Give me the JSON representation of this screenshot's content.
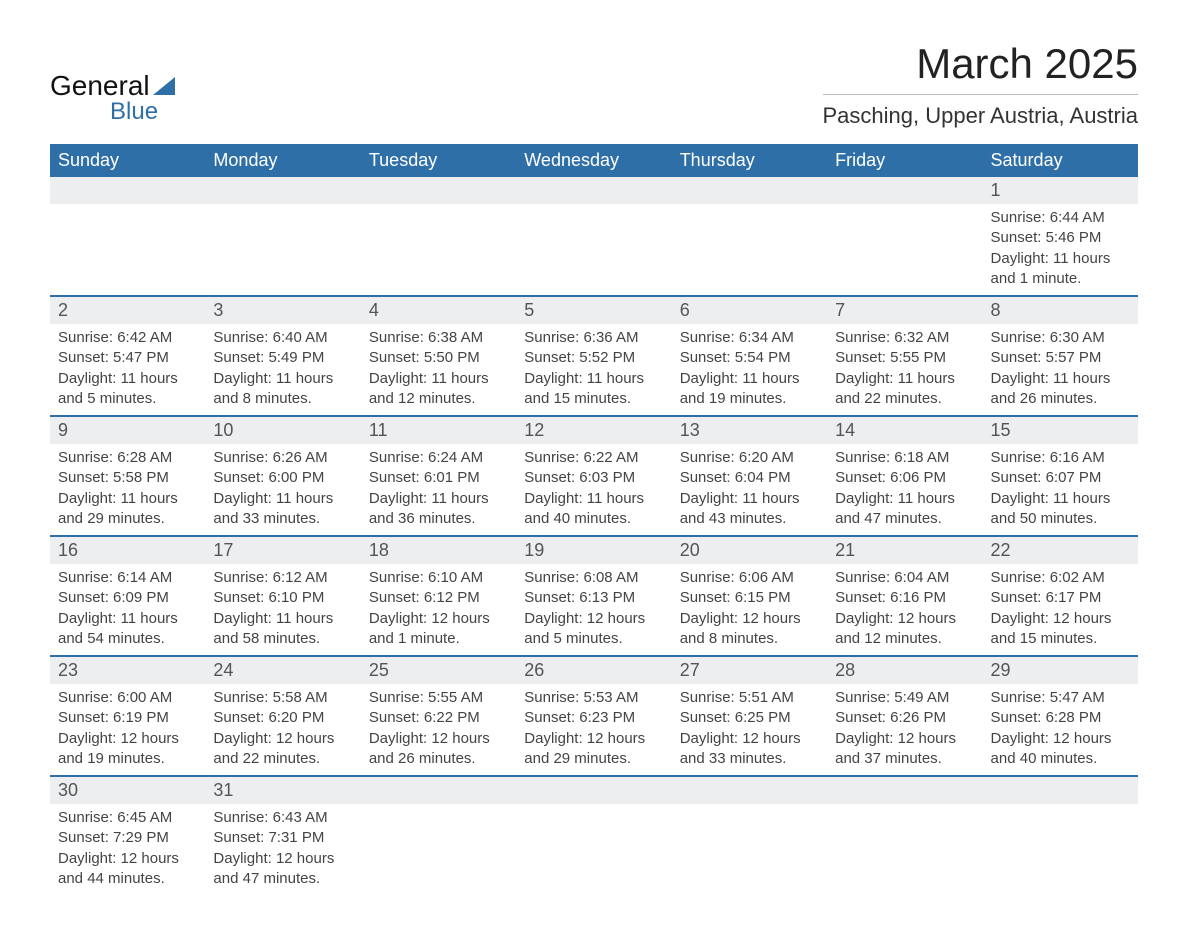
{
  "logo": {
    "word1": "General",
    "word2": "Blue"
  },
  "title": "March 2025",
  "location": "Pasching, Upper Austria, Austria",
  "colors": {
    "header_bg": "#2f6fa8",
    "header_text": "#ffffff",
    "daynum_bg": "#eceeef",
    "row_border": "#2f6fa8",
    "text": "#333333"
  },
  "weekdays": [
    "Sunday",
    "Monday",
    "Tuesday",
    "Wednesday",
    "Thursday",
    "Friday",
    "Saturday"
  ],
  "weeks": [
    {
      "nums": [
        "",
        "",
        "",
        "",
        "",
        "",
        "1"
      ],
      "data": [
        null,
        null,
        null,
        null,
        null,
        null,
        {
          "sunrise": "Sunrise: 6:44 AM",
          "sunset": "Sunset: 5:46 PM",
          "day1": "Daylight: 11 hours",
          "day2": "and 1 minute."
        }
      ]
    },
    {
      "nums": [
        "2",
        "3",
        "4",
        "5",
        "6",
        "7",
        "8"
      ],
      "data": [
        {
          "sunrise": "Sunrise: 6:42 AM",
          "sunset": "Sunset: 5:47 PM",
          "day1": "Daylight: 11 hours",
          "day2": "and 5 minutes."
        },
        {
          "sunrise": "Sunrise: 6:40 AM",
          "sunset": "Sunset: 5:49 PM",
          "day1": "Daylight: 11 hours",
          "day2": "and 8 minutes."
        },
        {
          "sunrise": "Sunrise: 6:38 AM",
          "sunset": "Sunset: 5:50 PM",
          "day1": "Daylight: 11 hours",
          "day2": "and 12 minutes."
        },
        {
          "sunrise": "Sunrise: 6:36 AM",
          "sunset": "Sunset: 5:52 PM",
          "day1": "Daylight: 11 hours",
          "day2": "and 15 minutes."
        },
        {
          "sunrise": "Sunrise: 6:34 AM",
          "sunset": "Sunset: 5:54 PM",
          "day1": "Daylight: 11 hours",
          "day2": "and 19 minutes."
        },
        {
          "sunrise": "Sunrise: 6:32 AM",
          "sunset": "Sunset: 5:55 PM",
          "day1": "Daylight: 11 hours",
          "day2": "and 22 minutes."
        },
        {
          "sunrise": "Sunrise: 6:30 AM",
          "sunset": "Sunset: 5:57 PM",
          "day1": "Daylight: 11 hours",
          "day2": "and 26 minutes."
        }
      ]
    },
    {
      "nums": [
        "9",
        "10",
        "11",
        "12",
        "13",
        "14",
        "15"
      ],
      "data": [
        {
          "sunrise": "Sunrise: 6:28 AM",
          "sunset": "Sunset: 5:58 PM",
          "day1": "Daylight: 11 hours",
          "day2": "and 29 minutes."
        },
        {
          "sunrise": "Sunrise: 6:26 AM",
          "sunset": "Sunset: 6:00 PM",
          "day1": "Daylight: 11 hours",
          "day2": "and 33 minutes."
        },
        {
          "sunrise": "Sunrise: 6:24 AM",
          "sunset": "Sunset: 6:01 PM",
          "day1": "Daylight: 11 hours",
          "day2": "and 36 minutes."
        },
        {
          "sunrise": "Sunrise: 6:22 AM",
          "sunset": "Sunset: 6:03 PM",
          "day1": "Daylight: 11 hours",
          "day2": "and 40 minutes."
        },
        {
          "sunrise": "Sunrise: 6:20 AM",
          "sunset": "Sunset: 6:04 PM",
          "day1": "Daylight: 11 hours",
          "day2": "and 43 minutes."
        },
        {
          "sunrise": "Sunrise: 6:18 AM",
          "sunset": "Sunset: 6:06 PM",
          "day1": "Daylight: 11 hours",
          "day2": "and 47 minutes."
        },
        {
          "sunrise": "Sunrise: 6:16 AM",
          "sunset": "Sunset: 6:07 PM",
          "day1": "Daylight: 11 hours",
          "day2": "and 50 minutes."
        }
      ]
    },
    {
      "nums": [
        "16",
        "17",
        "18",
        "19",
        "20",
        "21",
        "22"
      ],
      "data": [
        {
          "sunrise": "Sunrise: 6:14 AM",
          "sunset": "Sunset: 6:09 PM",
          "day1": "Daylight: 11 hours",
          "day2": "and 54 minutes."
        },
        {
          "sunrise": "Sunrise: 6:12 AM",
          "sunset": "Sunset: 6:10 PM",
          "day1": "Daylight: 11 hours",
          "day2": "and 58 minutes."
        },
        {
          "sunrise": "Sunrise: 6:10 AM",
          "sunset": "Sunset: 6:12 PM",
          "day1": "Daylight: 12 hours",
          "day2": "and 1 minute."
        },
        {
          "sunrise": "Sunrise: 6:08 AM",
          "sunset": "Sunset: 6:13 PM",
          "day1": "Daylight: 12 hours",
          "day2": "and 5 minutes."
        },
        {
          "sunrise": "Sunrise: 6:06 AM",
          "sunset": "Sunset: 6:15 PM",
          "day1": "Daylight: 12 hours",
          "day2": "and 8 minutes."
        },
        {
          "sunrise": "Sunrise: 6:04 AM",
          "sunset": "Sunset: 6:16 PM",
          "day1": "Daylight: 12 hours",
          "day2": "and 12 minutes."
        },
        {
          "sunrise": "Sunrise: 6:02 AM",
          "sunset": "Sunset: 6:17 PM",
          "day1": "Daylight: 12 hours",
          "day2": "and 15 minutes."
        }
      ]
    },
    {
      "nums": [
        "23",
        "24",
        "25",
        "26",
        "27",
        "28",
        "29"
      ],
      "data": [
        {
          "sunrise": "Sunrise: 6:00 AM",
          "sunset": "Sunset: 6:19 PM",
          "day1": "Daylight: 12 hours",
          "day2": "and 19 minutes."
        },
        {
          "sunrise": "Sunrise: 5:58 AM",
          "sunset": "Sunset: 6:20 PM",
          "day1": "Daylight: 12 hours",
          "day2": "and 22 minutes."
        },
        {
          "sunrise": "Sunrise: 5:55 AM",
          "sunset": "Sunset: 6:22 PM",
          "day1": "Daylight: 12 hours",
          "day2": "and 26 minutes."
        },
        {
          "sunrise": "Sunrise: 5:53 AM",
          "sunset": "Sunset: 6:23 PM",
          "day1": "Daylight: 12 hours",
          "day2": "and 29 minutes."
        },
        {
          "sunrise": "Sunrise: 5:51 AM",
          "sunset": "Sunset: 6:25 PM",
          "day1": "Daylight: 12 hours",
          "day2": "and 33 minutes."
        },
        {
          "sunrise": "Sunrise: 5:49 AM",
          "sunset": "Sunset: 6:26 PM",
          "day1": "Daylight: 12 hours",
          "day2": "and 37 minutes."
        },
        {
          "sunrise": "Sunrise: 5:47 AM",
          "sunset": "Sunset: 6:28 PM",
          "day1": "Daylight: 12 hours",
          "day2": "and 40 minutes."
        }
      ]
    },
    {
      "nums": [
        "30",
        "31",
        "",
        "",
        "",
        "",
        ""
      ],
      "data": [
        {
          "sunrise": "Sunrise: 6:45 AM",
          "sunset": "Sunset: 7:29 PM",
          "day1": "Daylight: 12 hours",
          "day2": "and 44 minutes."
        },
        {
          "sunrise": "Sunrise: 6:43 AM",
          "sunset": "Sunset: 7:31 PM",
          "day1": "Daylight: 12 hours",
          "day2": "and 47 minutes."
        },
        null,
        null,
        null,
        null,
        null
      ]
    }
  ]
}
